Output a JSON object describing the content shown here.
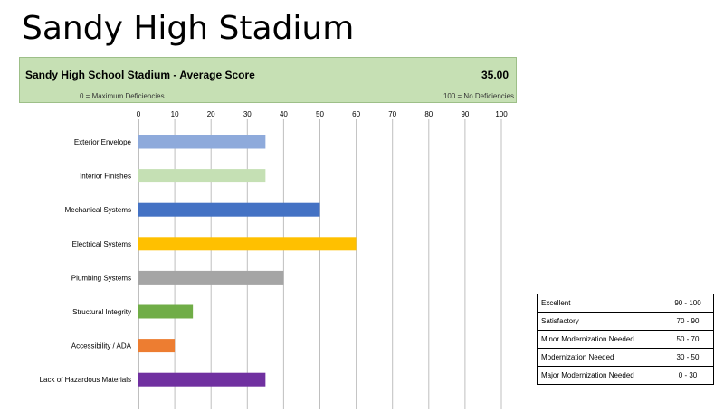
{
  "slide_title": "Sandy High Stadium",
  "header": {
    "title": "Sandy High School Stadium - Average Score",
    "score": "35.00",
    "scale_min": "0 = Maximum Deficiencies",
    "scale_max": "100 = No Deficiencies"
  },
  "chart_data": {
    "type": "bar",
    "orientation": "horizontal",
    "title": "Sandy High School Stadium - Average Score",
    "xlim": [
      0,
      100
    ],
    "xticks": [
      0,
      10,
      20,
      30,
      40,
      50,
      60,
      70,
      80,
      90,
      100
    ],
    "grid": true,
    "categories": [
      "Exterior Envelope",
      "Interior Finishes",
      "Mechanical Systems",
      "Electrical Systems",
      "Plumbing Systems",
      "Structural Integrity",
      "Accessibility / ADA",
      "Lack of Hazardous Materials"
    ],
    "values": [
      35,
      35,
      50,
      60,
      40,
      15,
      10,
      35
    ],
    "colors": [
      "#8eaadb",
      "#c5e0b4",
      "#4472c4",
      "#ffc000",
      "#a5a5a5",
      "#70ad47",
      "#ed7d31",
      "#7030a0"
    ]
  },
  "legend": {
    "rows": [
      {
        "label": "Excellent",
        "range": "90 - 100"
      },
      {
        "label": "Satisfactory",
        "range": "70 - 90"
      },
      {
        "label": "Minor Modernization Needed",
        "range": "50 - 70"
      },
      {
        "label": "Modernization Needed",
        "range": "30 - 50"
      },
      {
        "label": "Major Modernization Needed",
        "range": "0 - 30"
      }
    ]
  }
}
